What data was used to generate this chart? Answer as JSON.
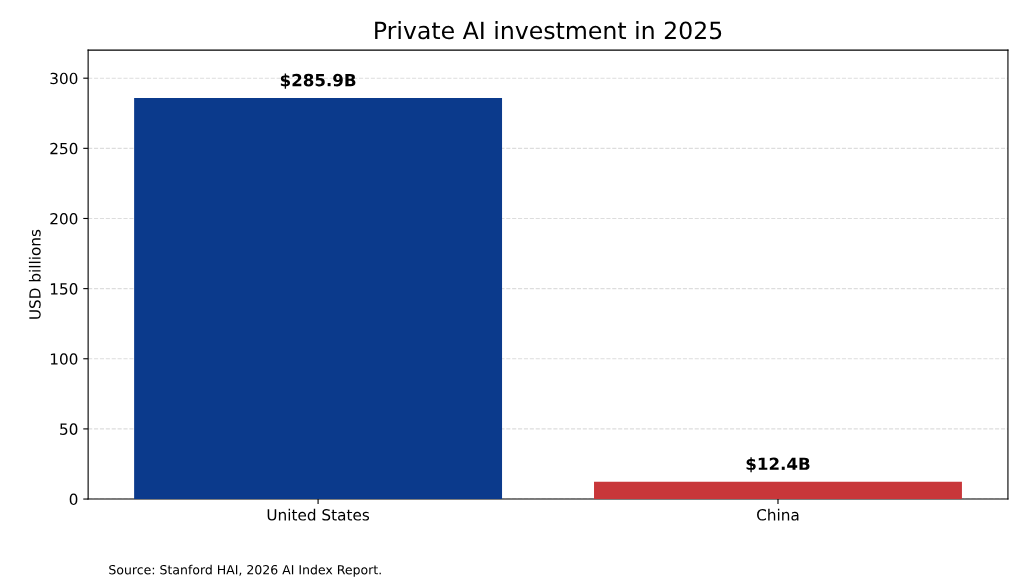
{
  "chart_data": {
    "type": "bar",
    "title": "Private AI investment in 2025",
    "ylabel": "USD billions",
    "categories": [
      "United States",
      "China"
    ],
    "values": [
      285.9,
      12.4
    ],
    "colors": [
      "#0b3a8c",
      "#c8373a"
    ],
    "value_labels": [
      "$285.9B",
      "$12.4B"
    ],
    "ylim": [
      0,
      320
    ],
    "yticks": [
      0,
      50,
      100,
      150,
      200,
      250,
      300
    ],
    "grid": "y",
    "legend": false,
    "annotations": [
      "Source: Stanford HAI, 2026 AI Index Report."
    ]
  }
}
